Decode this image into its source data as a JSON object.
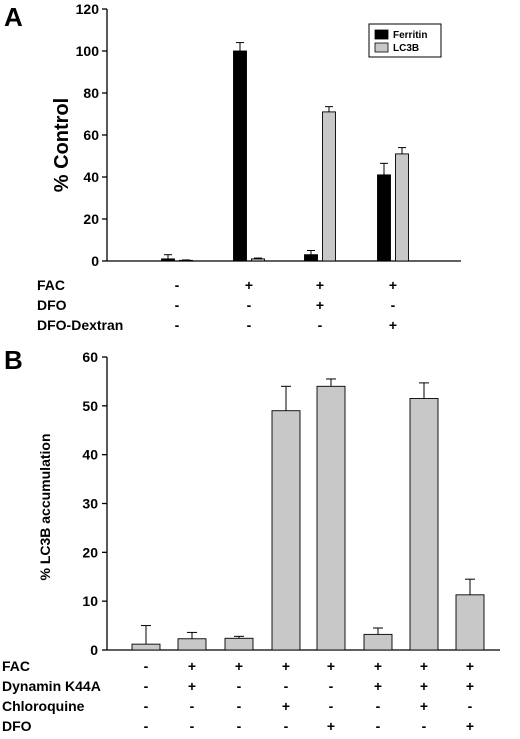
{
  "chart_data": [
    {
      "panel": "A",
      "type": "bar",
      "ylabel": "% Control",
      "ylim": [
        0,
        120
      ],
      "yticks": [
        0,
        20,
        40,
        60,
        80,
        100,
        120
      ],
      "legend_position": "top-right",
      "series": [
        {
          "name": "Ferritin",
          "color": "#000000",
          "values": [
            1,
            100,
            3,
            41
          ],
          "errors": [
            2,
            4,
            2,
            5.5
          ]
        },
        {
          "name": "LC3B",
          "color": "#c8c8c8",
          "values": [
            0.3,
            1,
            71,
            51
          ],
          "errors": [
            0.2,
            0.4,
            2.5,
            3
          ]
        }
      ],
      "conditions": [
        {
          "label": "FAC",
          "signs": [
            "-",
            "+",
            "+",
            "+"
          ]
        },
        {
          "label": "DFO",
          "signs": [
            "-",
            "-",
            "+",
            "-"
          ]
        },
        {
          "label": "DFO-Dextran",
          "signs": [
            "-",
            "-",
            "-",
            "+"
          ]
        }
      ]
    },
    {
      "panel": "B",
      "type": "bar",
      "ylabel": "% LC3B accumulation",
      "ylim": [
        0,
        60
      ],
      "yticks": [
        0,
        10,
        20,
        30,
        40,
        50,
        60
      ],
      "series": [
        {
          "color": "#c8c8c8",
          "values": [
            1.2,
            2.3,
            2.4,
            49,
            54,
            3.2,
            51.5,
            11.3
          ],
          "errors": [
            3.8,
            1.3,
            0.4,
            5,
            1.5,
            1.3,
            3.2,
            3.2
          ]
        }
      ],
      "conditions": [
        {
          "label": "FAC",
          "signs": [
            "-",
            "+",
            "+",
            "+",
            "+",
            "+",
            "+",
            "+"
          ]
        },
        {
          "label": "Dynamin K44A",
          "signs": [
            "-",
            "+",
            "-",
            "-",
            "-",
            "+",
            "+",
            "+"
          ]
        },
        {
          "label": "Chloroquine",
          "signs": [
            "-",
            "-",
            "-",
            "+",
            "-",
            "-",
            "+",
            "-"
          ]
        },
        {
          "label": "DFO",
          "signs": [
            "-",
            "-",
            "-",
            "-",
            "+",
            "-",
            "-",
            "+"
          ]
        }
      ]
    }
  ]
}
